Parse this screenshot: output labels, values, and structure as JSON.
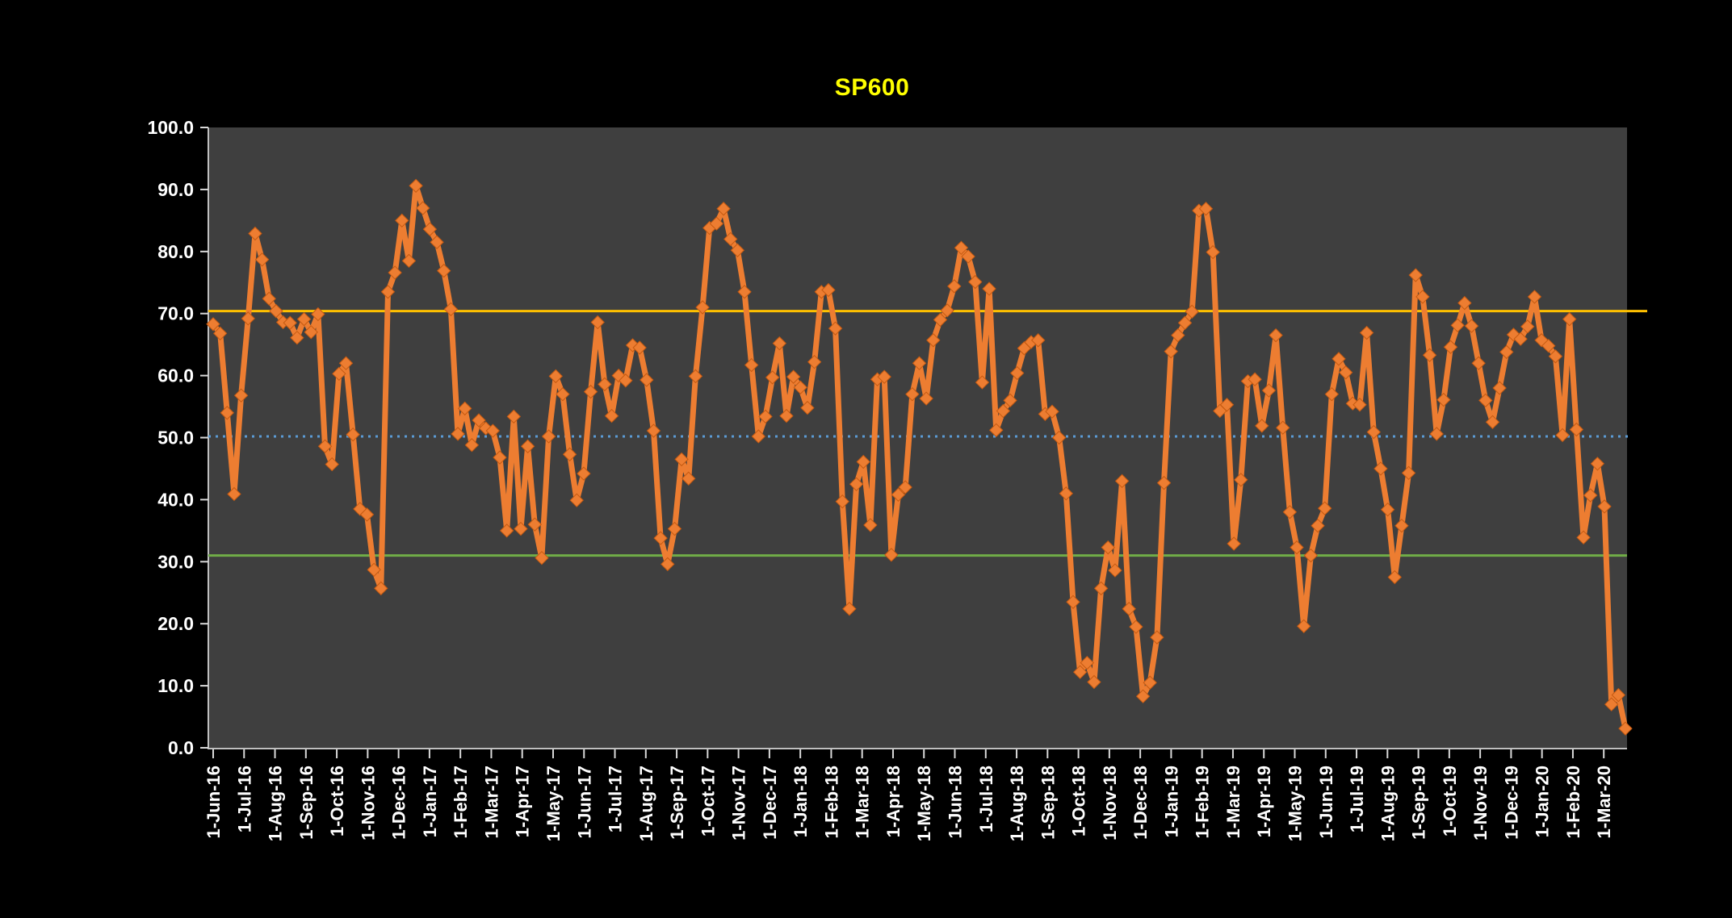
{
  "window": {
    "background": "#000000"
  },
  "header": {
    "title": "SP600",
    "title_color": "#FFFF00"
  },
  "chart_data": {
    "type": "line",
    "title": "SP600",
    "series_name": "SP600",
    "sampling": "weekly",
    "legend": "none",
    "grid": "off",
    "plot_background": "#3F3F3F",
    "series_color": "#ED7D31",
    "marker": "diamond",
    "marker_edge_color": "#C55A11",
    "axis_text_color": "#FFFFFF",
    "axis_line_color": "#BFBFBF",
    "ylim": [
      0,
      100
    ],
    "y_tick_step": 10,
    "y_tick_labels": [
      "100.0",
      "90.0",
      "80.0",
      "70.0",
      "60.0",
      "50.0",
      "40.0",
      "30.0",
      "20.0",
      "10.0",
      "0.0"
    ],
    "x_tick_labels": [
      "1-Jun-16",
      "1-Jul-16",
      "1-Aug-16",
      "1-Sep-16",
      "1-Oct-16",
      "1-Nov-16",
      "1-Dec-16",
      "1-Jan-17",
      "1-Feb-17",
      "1-Mar-17",
      "1-Apr-17",
      "1-May-17",
      "1-Jun-17",
      "1-Jul-17",
      "1-Aug-17",
      "1-Sep-17",
      "1-Oct-17",
      "1-Nov-17",
      "1-Dec-17",
      "1-Jan-18",
      "1-Feb-18",
      "1-Mar-18",
      "1-Apr-18",
      "1-May-18",
      "1-Jun-18",
      "1-Jul-18",
      "1-Aug-18",
      "1-Sep-18",
      "1-Oct-18",
      "1-Nov-18",
      "1-Dec-18",
      "1-Jan-19",
      "1-Feb-19",
      "1-Mar-19",
      "1-Apr-19",
      "1-May-19",
      "1-Jun-19",
      "1-Jul-19",
      "1-Aug-19",
      "1-Sep-19",
      "1-Oct-19",
      "1-Nov-19",
      "1-Dec-19",
      "1-Jan-20",
      "1-Feb-20",
      "1-Mar-20"
    ],
    "reference_lines": [
      {
        "name": "upper-threshold-line",
        "value": 70.4,
        "color": "#FFC000",
        "style": "solid"
      },
      {
        "name": "mid-line",
        "value": 50.2,
        "color": "#5B9BD5",
        "style": "dotted"
      },
      {
        "name": "lower-threshold-line",
        "value": 31.0,
        "color": "#70AD47",
        "style": "solid"
      }
    ],
    "values": [
      68.3,
      66.8,
      54,
      40.9,
      56.8,
      69.2,
      82.9,
      78.7,
      72.4,
      70.4,
      68.6,
      68.5,
      66.1,
      69.1,
      67,
      69.9,
      48.6,
      45.7,
      60.3,
      62,
      50.5,
      38.5,
      37.6,
      28.7,
      25.7,
      73.5,
      76.6,
      85,
      78.5,
      90.6,
      87,
      83.6,
      81.5,
      76.9,
      70.7,
      50.6,
      54.7,
      48.8,
      52.8,
      51.5,
      51.1,
      46.8,
      35,
      53.4,
      35.3,
      48.6,
      36,
      30.6,
      50.2,
      59.9,
      57,
      47.3,
      39.9,
      44.2,
      57.4,
      68.6,
      58.6,
      53.5,
      60,
      59.2,
      64.9,
      64.5,
      59.3,
      51.1,
      33.8,
      29.6,
      35.3,
      46.5,
      43.4,
      59.9,
      71,
      83.8,
      84.5,
      86.9,
      82,
      80.2,
      73.5,
      61.7,
      50.2,
      53.4,
      59.7,
      65.2,
      53.5,
      59.8,
      58.1,
      54.8,
      62.2,
      73.5,
      73.8,
      67.6,
      39.7,
      22.4,
      42.5,
      46.1,
      35.9,
      59.4,
      59.8,
      31.1,
      40.8,
      42,
      57,
      62,
      56.3,
      65.7,
      69,
      70.5,
      74.4,
      80.6,
      79.2,
      75.1,
      58.9,
      74,
      51.2,
      54.3,
      56,
      60.4,
      64.4,
      65.4,
      65.7,
      53.8,
      54.2,
      50,
      41,
      23.5,
      12.2,
      13.7,
      10.6,
      25.7,
      32.3,
      28.6,
      43,
      22.4,
      19.5,
      8.3,
      10.5,
      17.8,
      42.7,
      63.9,
      66.5,
      68.5,
      70.3,
      86.6,
      86.9,
      79.9,
      54.3,
      55.3,
      32.9,
      43.2,
      59.1,
      59.4,
      51.9,
      57.6,
      66.5,
      51.6,
      38,
      32.3,
      19.6,
      31,
      35.8,
      38.6,
      57,
      62.7,
      60.5,
      55.5,
      55.3,
      66.9,
      50.9,
      45,
      38.4,
      27.5,
      35.8,
      44.3,
      76.2,
      72.7,
      63.3,
      50.6,
      56.1,
      64.6,
      68.1,
      71.7,
      68,
      62,
      56,
      52.5,
      58,
      63.8,
      66.6,
      65.9,
      67.9,
      72.7,
      65.7,
      64.8,
      63.1,
      50.4,
      69.1,
      51.3,
      33.9,
      40.7,
      45.8,
      38.9,
      7,
      8.5,
      3.1
    ]
  }
}
